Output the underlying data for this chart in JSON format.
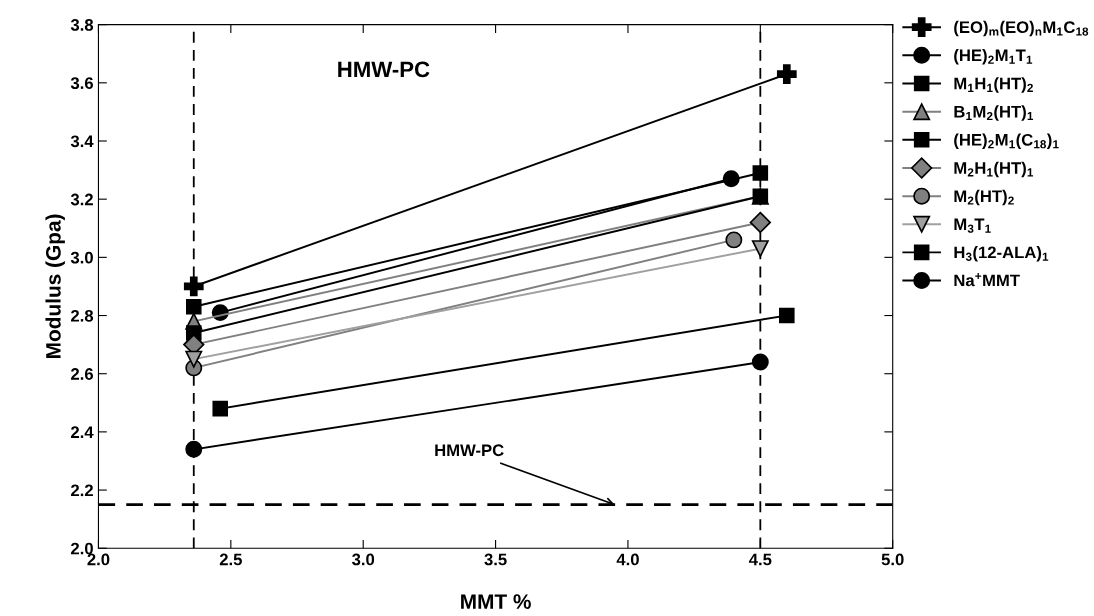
{
  "chart_data": {
    "type": "line",
    "title": "HMW-PC",
    "xlabel": "MMT %",
    "ylabel": "Modulus (Gpa)",
    "xlim": [
      2.0,
      5.0
    ],
    "xticks": [
      {
        "value": 2.0,
        "label": "2.0"
      },
      2.5,
      {
        "value": 3.0,
        "label": "3.0"
      },
      3.5,
      {
        "value": 4.0,
        "label": "4.0"
      },
      4.5,
      {
        "value": 5.0,
        "label": "5.0"
      }
    ],
    "ylim": [
      2.0,
      3.8
    ],
    "yticks": [
      {
        "value": 2.0,
        "label": "2.0"
      },
      2.2,
      2.4,
      2.6,
      2.8,
      {
        "value": 3.0,
        "label": "3.0"
      },
      3.2,
      3.4,
      3.6,
      3.8
    ],
    "grid": false,
    "legend": "right",
    "line_style": "solid",
    "series": [
      {
        "name": "(EO)$_{m}$(EO)$_{n}$M$_{1}$C$_{18}$",
        "color": "#000000",
        "marker": "cross",
        "x": [
          2.36,
          4.6
        ],
        "values": [
          2.9,
          3.63
        ]
      },
      {
        "name": "(HE)$_{2}$M$_{1}$T$_{1}$",
        "color": "#000000",
        "marker": "circle",
        "x": [
          2.46,
          4.39
        ],
        "values": [
          2.81,
          3.27
        ]
      },
      {
        "name": "M$_{1}$H$_{1}$(HT)$_{2}$",
        "color": "#000000",
        "marker": "square",
        "x": [
          2.36,
          4.5
        ],
        "values": [
          2.83,
          3.29
        ]
      },
      {
        "name": "B$_{1}$M$_{2}$(HT)$_{1}$",
        "color": "#808080",
        "marker": "triangle",
        "x": [
          2.36,
          4.5
        ],
        "values": [
          2.78,
          3.21
        ]
      },
      {
        "name": "(HE)$_{2}$M$_{1}$(C$_{18}$)$_{1}$",
        "color": "#000000",
        "marker": "square",
        "x": [
          2.36,
          4.5
        ],
        "values": [
          2.74,
          3.21
        ]
      },
      {
        "name": "M$_{2}$H$_{1}$(HT)$_{1}$",
        "color": "#808080",
        "marker": "diamond",
        "x": [
          2.36,
          4.5
        ],
        "values": [
          2.7,
          3.12
        ]
      },
      {
        "name": "M$_{2}$(HT)$_{2}$",
        "color": "#808080",
        "marker": "circle",
        "x": [
          2.36,
          4.4
        ],
        "values": [
          2.62,
          3.06
        ]
      },
      {
        "name": "M$_{3}$T$_{1}$",
        "color": "#a0a0a0",
        "marker": "triangle_down",
        "x": [
          2.36,
          4.5
        ],
        "values": [
          2.65,
          3.03
        ]
      },
      {
        "name": "H$_{3}$(12-ALA)$_{1}$",
        "color": "#000000",
        "marker": "square",
        "x": [
          2.46,
          4.6
        ],
        "values": [
          2.48,
          2.8
        ]
      },
      {
        "name": "Na$^{+}$MMT",
        "color": "#000000",
        "marker": "circle",
        "x": [
          2.36,
          4.5
        ],
        "values": [
          2.34,
          2.64
        ]
      }
    ],
    "ref_lines": [
      {
        "axis": "x",
        "value": 2.36,
        "line_style": "dashed",
        "color": "#000000"
      },
      {
        "axis": "x",
        "value": 4.5,
        "line_style": "dashed",
        "color": "#000000"
      },
      {
        "axis": "y",
        "value": 2.15,
        "line_style": "dashed",
        "color": "#000000"
      }
    ],
    "annotations": [
      {
        "text": "HMW-PC",
        "x": 3.95,
        "y": 2.15
      }
    ]
  }
}
